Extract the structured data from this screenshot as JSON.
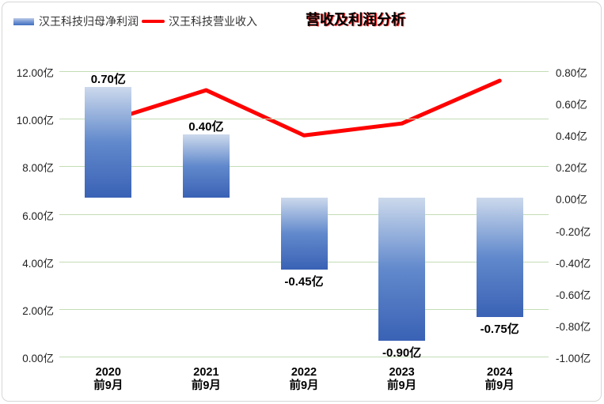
{
  "header": {
    "title": "营收及利润分析",
    "legend": [
      {
        "type": "bar",
        "label": "汉王科技归母净利润"
      },
      {
        "type": "line",
        "label": "汉王科技营业收入"
      }
    ]
  },
  "colors": {
    "bar_gradient_top": "#ccd9ec",
    "bar_gradient_mid": "#6189cc",
    "bar_gradient_bottom": "#3a62b5",
    "line": "#ff0000",
    "gridline": "#c3ddb6",
    "axis_text": "#1f1f1f",
    "data_label_text": "#000000",
    "legend_text": "#333333",
    "title_text": "#000000",
    "title_fringe": "#ff0000",
    "frame_border": "#d6d6d6"
  },
  "chart_data": {
    "type": "bar",
    "subtype": "bar-line combo, dual axis",
    "title": "营收及利润分析",
    "categories": [
      "2020",
      "2021",
      "2022",
      "2023",
      "2024"
    ],
    "category_sub_label": "前9月",
    "series": [
      {
        "name": "汉王科技归母净利润",
        "type": "bar",
        "axis": "right",
        "values": [
          0.7,
          0.4,
          -0.45,
          -0.9,
          -0.75
        ],
        "data_labels": [
          "0.70亿",
          "0.40亿",
          "-0.45亿",
          "-0.90亿",
          "-0.75亿"
        ]
      },
      {
        "name": "汉王科技营业收入",
        "type": "line",
        "axis": "left",
        "values": [
          9.9,
          11.2,
          9.3,
          9.8,
          11.6
        ]
      }
    ],
    "left_axis": {
      "min": 0,
      "max": 12,
      "step": 2,
      "tick_labels": [
        "12.00亿",
        "10.00亿",
        "8.00亿",
        "6.00亿",
        "4.00亿",
        "2.00亿",
        "0.00亿"
      ]
    },
    "right_axis": {
      "min": -1.0,
      "max": 0.8,
      "step": 0.2,
      "tick_labels": [
        "0.80亿",
        "0.60亿",
        "0.40亿",
        "0.20亿",
        "0.00亿",
        "-0.20亿",
        "-0.40亿",
        "-0.60亿",
        "-0.80亿",
        "-1.00亿"
      ]
    },
    "grid": "horizontal gridlines at left-axis ticks",
    "legend_position": "top-left"
  }
}
